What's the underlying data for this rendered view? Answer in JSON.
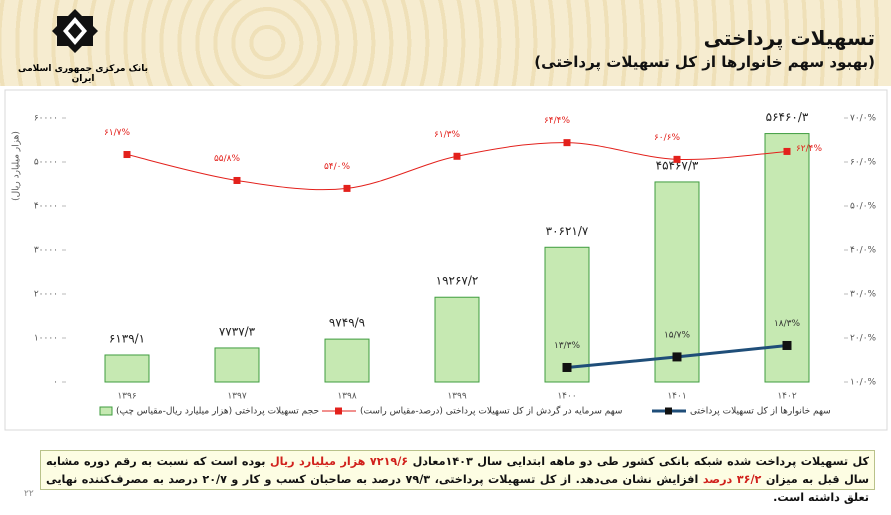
{
  "header": {
    "title": "تسهیلات پرداختی",
    "subtitle": "(بهبود سهم خانوارها از کل تسهیلات پرداختی)",
    "logo_text": "بانک مرکزی جمهوری اسلامی ایران"
  },
  "chart_data": {
    "type": "bar",
    "y_label": "(هزار میلیارد ریال)",
    "categories": [
      "۱۳۹۶",
      "۱۳۹۷",
      "۱۳۹۸",
      "۱۳۹۹",
      "۱۴۰۰",
      "۱۴۰۱",
      "۱۴۰۲"
    ],
    "series": [
      {
        "name": "حجم تسهیلات پرداختی (هزار میلیارد ریال-مقیاس چپ)",
        "type": "bar",
        "color": "#c6e9b2",
        "values": [
          6139.1,
          7737.3,
          9749.9,
          19267.2,
          30621.7,
          45467.3,
          56460.3
        ],
        "value_labels": [
          "۶۱۳۹/۱",
          "۷۷۳۷/۳",
          "۹۷۴۹/۹",
          "۱۹۲۶۷/۲",
          "۳۰۶۲۱/۷",
          "۴۵۴۶۷/۳",
          "۵۶۴۶۰/۳"
        ]
      },
      {
        "name": "سهم سرمایه در گردش از کل تسهیلات پرداختی (درصد-مقیاس راست)",
        "type": "line",
        "axis": "y2",
        "color": "#e3211c",
        "values": [
          61.7,
          55.8,
          54.0,
          61.3,
          64.4,
          60.6,
          62.4
        ],
        "value_labels": [
          "۶۱/۷%",
          "۵۵/۸%",
          "۵۴/۰%",
          "۶۱/۳%",
          "۶۴/۴%",
          "۶۰/۶%",
          "۶۲/۴%"
        ]
      },
      {
        "name": "سهم خانوارها از کل تسهیلات پرداختی",
        "type": "line",
        "axis": "y2",
        "color": "#1f4e79",
        "values": [
          null,
          null,
          null,
          null,
          13.3,
          15.7,
          18.3
        ],
        "value_labels": [
          null,
          null,
          null,
          null,
          "۱۳/۳%",
          "۱۵/۷%",
          "۱۸/۳%"
        ]
      }
    ],
    "ylim": [
      0,
      60000
    ],
    "yticks": [
      {
        "value": 0,
        "label": "۰"
      },
      {
        "value": 10000,
        "label": "۱۰۰۰۰"
      },
      {
        "value": 20000,
        "label": "۲۰۰۰۰"
      },
      {
        "value": 30000,
        "label": "۳۰۰۰۰"
      },
      {
        "value": 40000,
        "label": "۴۰۰۰۰"
      },
      {
        "value": 50000,
        "label": "۵۰۰۰۰"
      },
      {
        "value": 60000,
        "label": "۶۰۰۰۰"
      }
    ],
    "y2lim": [
      10,
      70
    ],
    "y2ticks": [
      {
        "value": 10,
        "label": "۱۰/۰%"
      },
      {
        "value": 20,
        "label": "۲۰/۰%"
      },
      {
        "value": 30,
        "label": "۳۰/۰%"
      },
      {
        "value": 40,
        "label": "۴۰/۰%"
      },
      {
        "value": 50,
        "label": "۵۰/۰%"
      },
      {
        "value": 60,
        "label": "۶۰/۰%"
      },
      {
        "value": 70,
        "label": "۷۰/۰%"
      }
    ]
  },
  "note": [
    "کل تسهیلات پرداخت شده شبکه بانکی کشور طی دو ماهه ابتدایی سال ۱۴۰۳معادل ",
    "۷۲۱۹/۶ هزار میلیارد ریال",
    " بوده است که نسبت به رقم دوره مشابه سال قبل به میزان ",
    "۳۶/۲ درصد",
    " افزایش نشان می‌دهد. از کل تسهیلات پرداختی، ۷۹/۳ درصد به صاحبان کسب و کار و ۲۰/۷ درصد به مصرف‌کننده نهایی تعلق داشته است."
  ],
  "page_number": "۲۲"
}
